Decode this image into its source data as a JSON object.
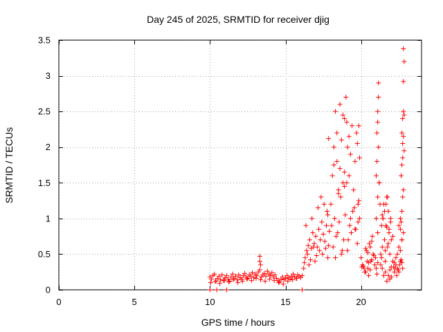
{
  "chart_data": {
    "type": "scatter",
    "title": "Day 245 of 2025, SRMTID for receiver djig",
    "xlabel": "GPS time / hours",
    "ylabel": "SRMTID / TECUs",
    "xlim": [
      0,
      24
    ],
    "ylim": [
      0,
      3.5
    ],
    "xticks": [
      0,
      5,
      10,
      15,
      20
    ],
    "xtick_labels": [
      "0",
      "5",
      "10",
      "15",
      "20"
    ],
    "yticks": [
      0,
      0.5,
      1,
      1.5,
      2,
      2.5,
      3,
      3.5
    ],
    "ytick_labels": [
      "0",
      "0.5",
      "1",
      "1.5",
      "2",
      "2.5",
      "3",
      "3.5"
    ],
    "grid": true,
    "marker": "+",
    "color": "#ff0000",
    "series": [
      {
        "name": "SRMTID",
        "x": [
          10.0,
          10.1,
          10.2,
          10.3,
          10.4,
          10.5,
          10.6,
          10.7,
          10.8,
          10.9,
          11.0,
          11.1,
          11.2,
          11.3,
          11.4,
          11.5,
          11.6,
          11.7,
          11.8,
          11.9,
          12.0,
          12.1,
          12.2,
          12.3,
          12.4,
          12.5,
          12.6,
          12.7,
          12.8,
          12.9,
          13.0,
          13.1,
          13.2,
          13.3,
          13.4,
          13.5,
          13.6,
          13.7,
          13.8,
          13.9,
          14.0,
          14.1,
          14.2,
          14.3,
          14.4,
          14.5,
          14.6,
          14.7,
          14.8,
          14.9,
          15.0,
          15.1,
          15.2,
          15.3,
          15.4,
          15.5,
          15.6,
          15.7,
          15.8,
          15.9,
          16.0,
          16.1,
          10.05,
          10.35,
          10.65,
          10.95,
          11.25,
          11.55,
          11.85,
          12.15,
          12.45,
          12.75,
          13.05,
          13.35,
          13.65,
          13.95,
          14.25,
          14.55,
          14.85,
          15.15,
          15.45,
          15.75,
          13.3,
          13.3,
          13.35,
          10.0,
          10.45,
          16.1,
          11.1,
          16.2,
          16.3,
          16.4,
          16.5,
          16.6,
          16.7,
          16.8,
          16.9,
          17.0,
          17.1,
          17.2,
          17.3,
          17.4,
          17.5,
          17.6,
          17.7,
          17.8,
          17.9,
          16.25,
          16.45,
          16.65,
          16.85,
          17.05,
          17.25,
          17.45,
          17.65,
          17.85,
          16.35,
          16.75,
          17.15,
          17.55,
          17.35,
          17.75,
          16.55,
          16.95,
          17.8,
          18.0,
          18.1,
          18.2,
          18.3,
          18.4,
          18.5,
          18.6,
          18.7,
          18.8,
          18.9,
          19.0,
          19.1,
          19.2,
          19.3,
          19.4,
          19.5,
          19.6,
          19.7,
          19.8,
          19.9,
          18.05,
          18.25,
          18.45,
          18.65,
          18.85,
          19.05,
          19.25,
          19.45,
          19.65,
          19.85,
          18.15,
          18.35,
          18.55,
          18.75,
          18.95,
          19.15,
          19.35,
          19.55,
          19.75,
          18.3,
          18.5,
          18.7,
          18.9,
          19.1,
          19.3,
          19.6,
          19.8,
          19.85,
          18.8,
          18.6,
          19.05,
          18.4,
          18.2,
          18.9,
          19.2,
          19.75,
          17.85,
          19.9,
          20.0,
          20.1,
          20.2,
          20.3,
          20.4,
          20.5,
          20.6,
          20.7,
          20.8,
          20.9,
          21.0,
          21.1,
          20.05,
          20.25,
          20.45,
          20.65,
          20.85,
          21.05,
          20.15,
          20.35,
          20.55,
          20.75,
          20.95,
          20.5,
          20.6,
          20.7,
          20.45,
          20.3,
          21.0,
          21.05,
          21.1,
          21.15,
          21.1,
          21.15,
          21.05,
          21.1,
          21.0,
          21.15,
          21.2,
          21.25,
          21.1,
          21.2,
          21.3,
          21.35,
          21.4,
          21.45,
          21.5,
          21.55,
          21.6,
          21.65,
          21.7,
          21.75,
          21.8,
          21.85,
          21.9,
          21.95,
          22.0,
          21.3,
          21.4,
          21.5,
          21.6,
          21.7,
          21.8,
          21.9,
          22.0,
          22.1,
          21.35,
          21.45,
          21.55,
          21.65,
          21.75,
          21.85,
          21.95,
          21.4,
          21.6,
          21.8,
          22.1,
          21.7,
          21.9,
          22.0,
          22.2,
          22.3,
          22.4,
          22.5,
          22.6,
          22.7,
          22.15,
          22.25,
          22.35,
          22.45,
          22.55,
          22.65,
          22.75,
          22.2,
          22.3,
          22.4,
          22.5,
          22.6,
          22.7,
          22.8,
          22.5,
          22.6,
          22.7,
          22.75,
          22.8,
          22.65,
          22.7,
          22.75,
          22.8,
          22.7,
          22.75,
          22.8,
          22.85,
          22.8,
          22.85,
          22.8,
          22.85,
          22.75,
          22.65,
          22.7,
          22.6
        ],
        "y": [
          0.18,
          0.15,
          0.2,
          0.22,
          0.12,
          0.16,
          0.19,
          0.14,
          0.21,
          0.13,
          0.17,
          0.2,
          0.15,
          0.12,
          0.18,
          0.22,
          0.16,
          0.19,
          0.14,
          0.21,
          0.17,
          0.15,
          0.2,
          0.23,
          0.18,
          0.16,
          0.21,
          0.19,
          0.24,
          0.17,
          0.22,
          0.2,
          0.25,
          0.28,
          0.18,
          0.21,
          0.23,
          0.19,
          0.26,
          0.22,
          0.2,
          0.24,
          0.18,
          0.21,
          0.16,
          0.13,
          0.11,
          0.15,
          0.18,
          0.14,
          0.16,
          0.2,
          0.17,
          0.15,
          0.19,
          0.22,
          0.18,
          0.16,
          0.21,
          0.19,
          0.17,
          0.2,
          0.1,
          0.12,
          0.09,
          0.13,
          0.11,
          0.14,
          0.1,
          0.12,
          0.15,
          0.13,
          0.16,
          0.14,
          0.12,
          0.15,
          0.13,
          0.1,
          0.08,
          0.12,
          0.14,
          0.16,
          0.47,
          0.4,
          0.35,
          0.0,
          0.0,
          0.0,
          0.0,
          0.3,
          0.45,
          0.55,
          0.62,
          0.7,
          0.58,
          0.8,
          0.65,
          0.75,
          0.6,
          0.85,
          0.7,
          0.95,
          0.78,
          0.68,
          0.9,
          1.05,
          0.82,
          0.38,
          0.5,
          0.42,
          0.6,
          0.48,
          0.55,
          0.5,
          0.58,
          0.62,
          0.9,
          1.0,
          1.15,
          1.2,
          1.3,
          1.1,
          0.35,
          0.4,
          0.45,
          1.2,
          1.6,
          2.0,
          2.5,
          1.8,
          1.4,
          1.7,
          2.1,
          1.5,
          2.4,
          2.7,
          2.0,
          1.6,
          1.9,
          2.3,
          1.4,
          1.8,
          2.2,
          1.2,
          1.0,
          0.9,
          1.0,
          0.8,
          1.3,
          0.7,
          1.5,
          0.9,
          1.1,
          0.85,
          1.25,
          0.6,
          0.75,
          0.95,
          0.55,
          1.05,
          0.7,
          0.8,
          1.15,
          0.65,
          0.45,
          1.35,
          0.5,
          1.45,
          0.55,
          1.0,
          0.85,
          0.95,
          2.3,
          2.45,
          2.6,
          2.35,
          2.2,
          1.75,
          1.65,
          2.15,
          2.05,
          2.12,
          1.85,
          0.45,
          0.35,
          0.3,
          0.25,
          0.4,
          0.2,
          0.28,
          0.42,
          0.5,
          0.35,
          0.3,
          0.38,
          0.32,
          0.25,
          0.3,
          0.4,
          0.48,
          0.22,
          0.33,
          0.55,
          0.65,
          0.75,
          0.45,
          0.38,
          0.6,
          0.68,
          0.52,
          0.58,
          1.0,
          2.2,
          2.5,
          2.9,
          2.35,
          2.7,
          1.8,
          1.3,
          1.6,
          2.0,
          1.5,
          1.2,
          0.8,
          1.5,
          0.5,
          0.9,
          0.6,
          1.0,
          1.2,
          0.7,
          0.4,
          0.9,
          1.3,
          0.6,
          1.1,
          0.8,
          0.5,
          1.0,
          0.7,
          0.35,
          0.3,
          0.2,
          0.25,
          0.12,
          0.2,
          0.28,
          0.32,
          0.4,
          0.45,
          1.0,
          1.1,
          1.2,
          1.3,
          0.85,
          0.95,
          1.05,
          0.55,
          0.65,
          0.75,
          0.88,
          0.15,
          0.18,
          0.25,
          0.35,
          0.3,
          0.25,
          0.4,
          0.38,
          0.32,
          0.3,
          0.2,
          0.28,
          0.35,
          0.42,
          0.3,
          0.38,
          0.45,
          0.5,
          0.6,
          0.55,
          0.7,
          0.8,
          0.9,
          1.0,
          1.1,
          1.3,
          1.4,
          1.6,
          1.75,
          1.85,
          2.15,
          2.2,
          2.4,
          2.5,
          2.45,
          2.92,
          3.2,
          3.38,
          1.95,
          2.05,
          0.95,
          0.7,
          0.85
        ]
      }
    ]
  }
}
